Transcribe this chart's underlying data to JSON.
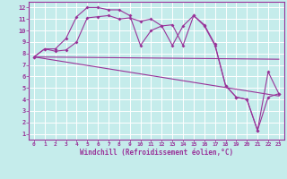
{
  "xlabel": "Windchill (Refroidissement éolien,°C)",
  "bg_color": "#c5eceb",
  "grid_color": "#ffffff",
  "line_color": "#993399",
  "xlim": [
    -0.5,
    23.5
  ],
  "ylim": [
    0.5,
    12.5
  ],
  "xticks": [
    0,
    1,
    2,
    3,
    4,
    5,
    6,
    7,
    8,
    9,
    10,
    11,
    12,
    13,
    14,
    15,
    16,
    17,
    18,
    19,
    20,
    21,
    22,
    23
  ],
  "yticks": [
    1,
    2,
    3,
    4,
    5,
    6,
    7,
    8,
    9,
    10,
    11,
    12
  ],
  "series1_x": [
    0,
    1,
    2,
    3,
    4,
    5,
    6,
    7,
    8,
    9,
    10,
    11,
    12,
    13,
    14,
    15,
    16,
    17,
    18,
    19,
    20,
    21,
    22,
    23
  ],
  "series1_y": [
    7.7,
    8.4,
    8.2,
    8.3,
    9.0,
    11.1,
    11.2,
    11.3,
    11.0,
    11.1,
    10.8,
    11.0,
    10.4,
    8.7,
    10.4,
    11.3,
    10.4,
    8.7,
    5.2,
    4.2,
    4.0,
    1.3,
    6.4,
    4.5
  ],
  "series2_x": [
    0,
    1,
    2,
    3,
    4,
    5,
    6,
    7,
    8,
    9,
    10,
    11,
    12,
    13,
    14,
    15,
    16,
    17,
    18,
    19,
    20,
    21,
    22,
    23
  ],
  "series2_y": [
    7.7,
    8.4,
    8.4,
    9.3,
    11.2,
    12.0,
    12.0,
    11.8,
    11.8,
    11.3,
    8.7,
    10.0,
    10.4,
    10.5,
    8.7,
    11.3,
    10.5,
    8.8,
    5.2,
    4.2,
    4.0,
    1.3,
    4.2,
    4.5
  ],
  "series3_x": [
    0,
    23
  ],
  "series3_y": [
    7.7,
    4.3
  ],
  "series4_x": [
    0,
    23
  ],
  "series4_y": [
    7.7,
    7.5
  ],
  "markersize": 2.0,
  "linewidth": 0.8
}
